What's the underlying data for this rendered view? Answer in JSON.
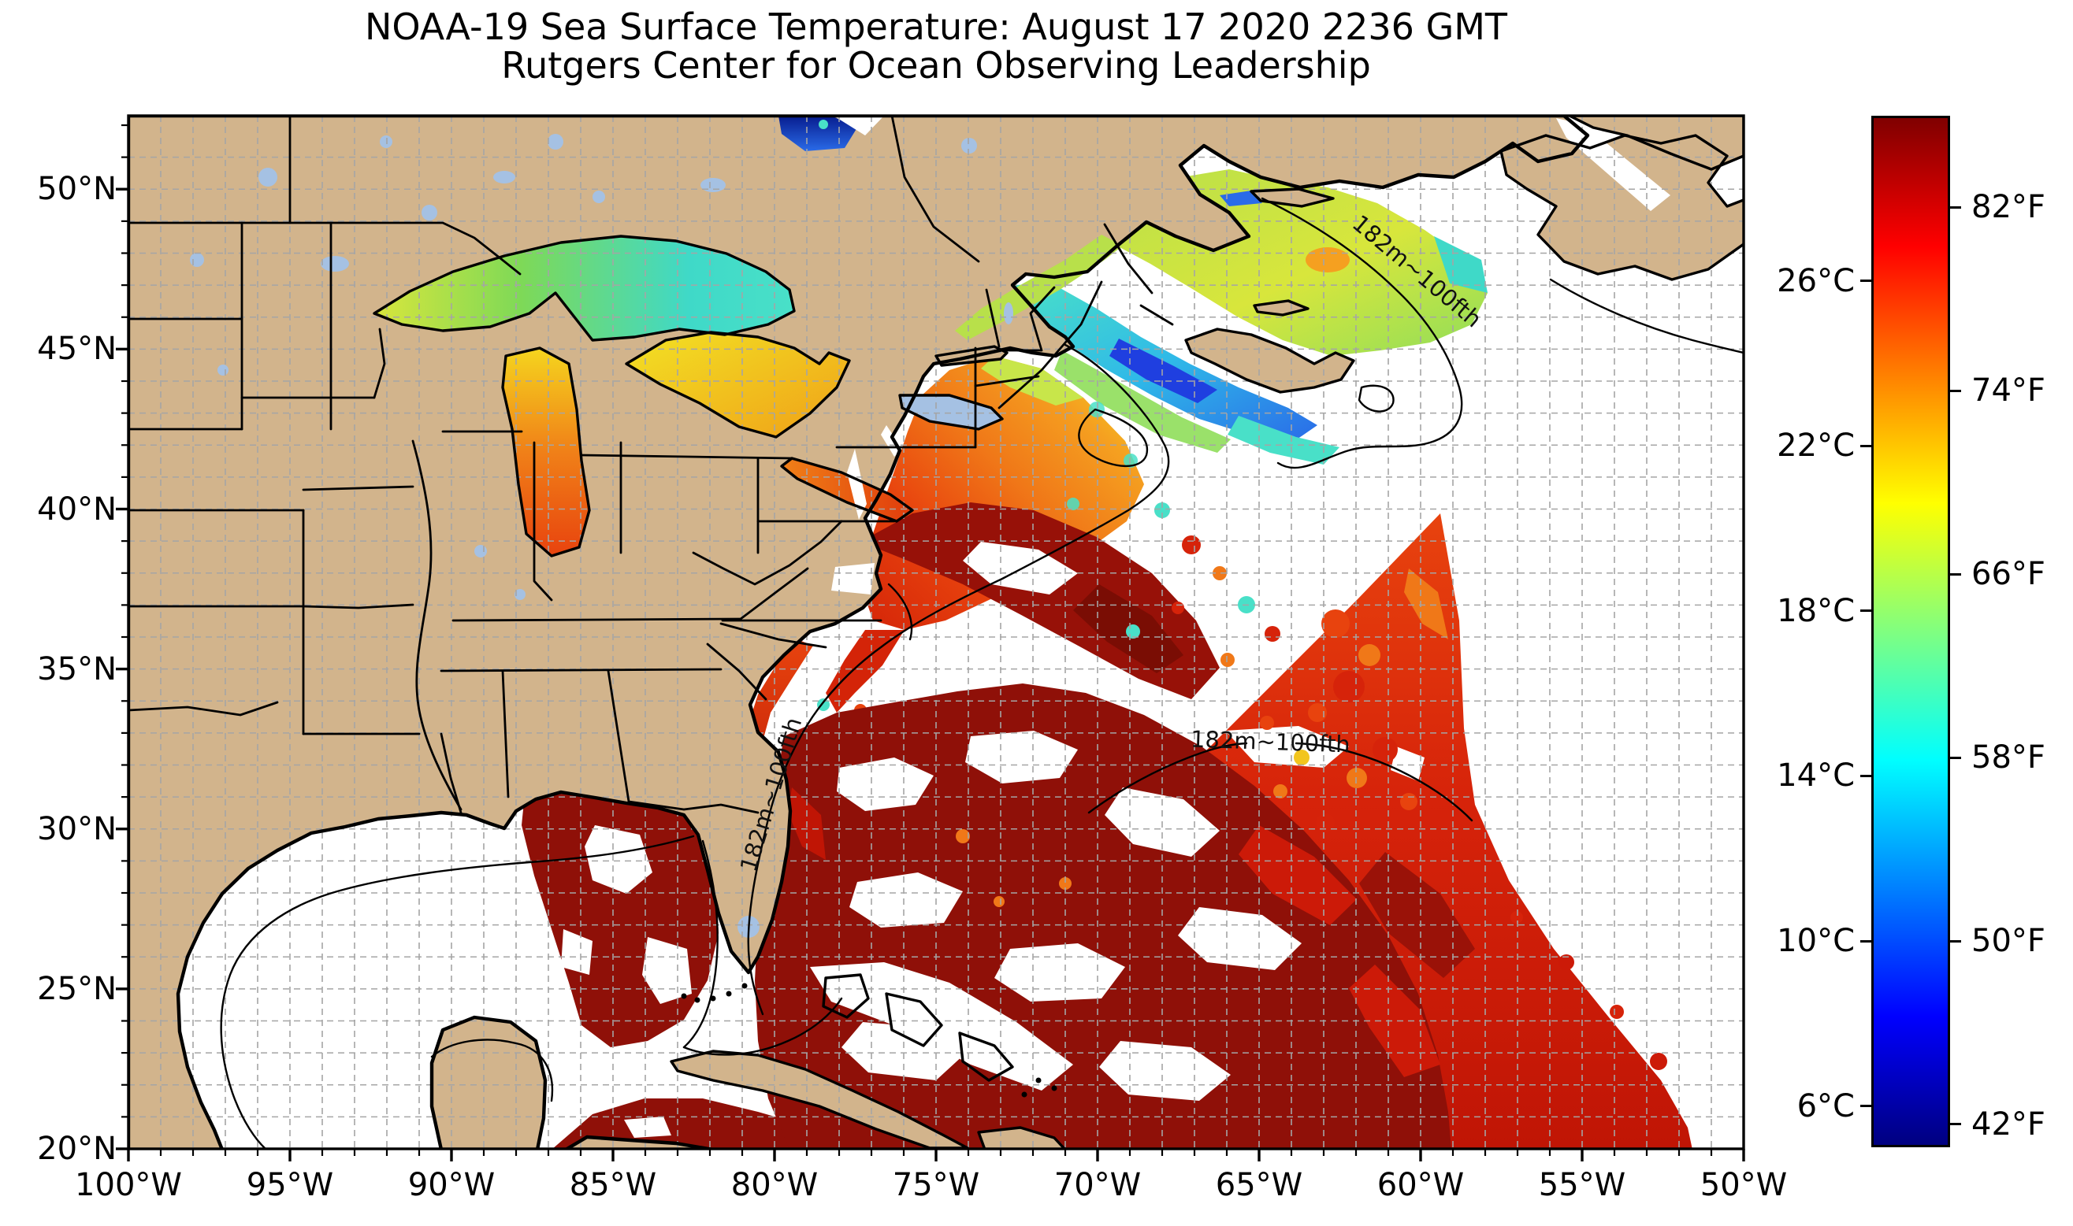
{
  "title": {
    "line1": "NOAA-19 Sea Surface Temperature: August 17 2020 2236 GMT",
    "line2": "Rutgers Center for Ocean Observing Leadership"
  },
  "axes": {
    "lon": {
      "ticks": [
        {
          "value": 100,
          "label": "100°W"
        },
        {
          "value": 95,
          "label": "95°W"
        },
        {
          "value": 90,
          "label": "90°W"
        },
        {
          "value": 85,
          "label": "85°W"
        },
        {
          "value": 80,
          "label": "80°W"
        },
        {
          "value": 75,
          "label": "75°W"
        },
        {
          "value": 70,
          "label": "70°W"
        },
        {
          "value": 65,
          "label": "65°W"
        },
        {
          "value": 60,
          "label": "60°W"
        },
        {
          "value": 55,
          "label": "55°W"
        },
        {
          "value": 50,
          "label": "50°W"
        }
      ]
    },
    "lat": {
      "ticks": [
        {
          "value": 50,
          "label": "50°N"
        },
        {
          "value": 45,
          "label": "45°N"
        },
        {
          "value": 40,
          "label": "40°N"
        },
        {
          "value": 35,
          "label": "35°N"
        },
        {
          "value": 30,
          "label": "30°N"
        },
        {
          "value": 25,
          "label": "25°N"
        },
        {
          "value": 20,
          "label": "20°N"
        }
      ]
    }
  },
  "colorbar": {
    "colormap": "jet",
    "min_c": 5,
    "max_c": 30,
    "min_f": 41,
    "max_f": 86,
    "celsius_ticks": [
      {
        "value": 26,
        "label": "26°C"
      },
      {
        "value": 22,
        "label": "22°C"
      },
      {
        "value": 18,
        "label": "18°C"
      },
      {
        "value": 14,
        "label": "14°C"
      },
      {
        "value": 10,
        "label": "10°C"
      },
      {
        "value": 6,
        "label": "6°C"
      }
    ],
    "fahrenheit_ticks": [
      {
        "value": 82,
        "label": "82°F"
      },
      {
        "value": 74,
        "label": "74°F"
      },
      {
        "value": 66,
        "label": "66°F"
      },
      {
        "value": 58,
        "label": "58°F"
      },
      {
        "value": 50,
        "label": "50°F"
      },
      {
        "value": 42,
        "label": "42°F"
      }
    ]
  },
  "annotations": {
    "depth_contour_label": "182m~100fth",
    "occurrences": 3
  },
  "palette": {
    "land": "#D2B48C",
    "lake": "#A5C1E3",
    "grid": "#A5A5A5",
    "ocean_nodata": "#FFFFFF",
    "sst_maroon": "#8F1008",
    "sst_bright_red": "#CC1A08",
    "sst_orange": "#F07818",
    "sst_yellow": "#F2E224",
    "sst_green": "#7ED957",
    "sst_cyan": "#3FD9C8",
    "sst_blue": "#1F3FE0",
    "sst_navy": "#071C8E"
  },
  "chart_data": {
    "type": "heatmap",
    "title": "NOAA-19 Sea Surface Temperature: August 17 2020 2236 GMT",
    "subtitle": "Rutgers Center for Ocean Observing Leadership",
    "projection": "equirectangular",
    "lon_range_deg_west": [
      100,
      50
    ],
    "lat_range_deg_north": [
      20,
      52.3
    ],
    "grid": "1-degree dashed graticule",
    "xlabel_ticks": [
      "100°W",
      "95°W",
      "90°W",
      "85°W",
      "80°W",
      "75°W",
      "70°W",
      "65°W",
      "60°W",
      "55°W",
      "50°W"
    ],
    "ylabel_ticks": [
      "50°N",
      "45°N",
      "40°N",
      "35°N",
      "30°N",
      "25°N",
      "20°N"
    ],
    "colorbar": {
      "colormap": "jet",
      "range_c": [
        5,
        30
      ],
      "range_f": [
        41,
        86
      ],
      "ticks_c": [
        26,
        22,
        18,
        14,
        10,
        6
      ],
      "ticks_f": [
        82,
        74,
        66,
        58,
        50,
        42
      ]
    },
    "regions": [
      {
        "name": "Lake Superior",
        "approx_temp_f": "55-66",
        "appearance": "green to cyan"
      },
      {
        "name": "Lake Michigan",
        "approx_temp_f": "70-77",
        "appearance": "orange"
      },
      {
        "name": "Lakes Huron / St. Clair / Erie",
        "approx_temp_f": "66-78",
        "appearance": "yellow-orange to red"
      },
      {
        "name": "Gulf of St. Lawrence & estuary",
        "approx_temp_f": "60-70",
        "appearance": "green-yellow with cyan"
      },
      {
        "name": "Gulf of Maine / Bay of Fundy / Scotian Shelf",
        "approx_temp_f": "46-60",
        "appearance": "cyan-blue"
      },
      {
        "name": "Mid-Atlantic Bight coastal swath",
        "approx_temp_f": "72-80",
        "appearance": "orange-red"
      },
      {
        "name": "Gulf Stream / western Sargasso Sea",
        "approx_temp_f": "84+",
        "appearance": "dark maroon with cloud holes"
      },
      {
        "name": "Eastern Gulf of Mexico & Caribbean",
        "approx_temp_f": "84+",
        "appearance": "dark maroon patches"
      },
      {
        "name": "Southeast diagonal satellite swath",
        "approx_temp_f": "80-86",
        "appearance": "bright red, sharp diagonal edge"
      },
      {
        "name": "Cloud-masked ocean",
        "approx_temp_f": "no data",
        "appearance": "white"
      },
      {
        "name": "Hudson Bay edge (top)",
        "approx_temp_f": "42-48",
        "appearance": "navy-blue"
      }
    ],
    "annotations": [
      "182m~100fth",
      "182m~100fth",
      "182m~100fth"
    ]
  }
}
